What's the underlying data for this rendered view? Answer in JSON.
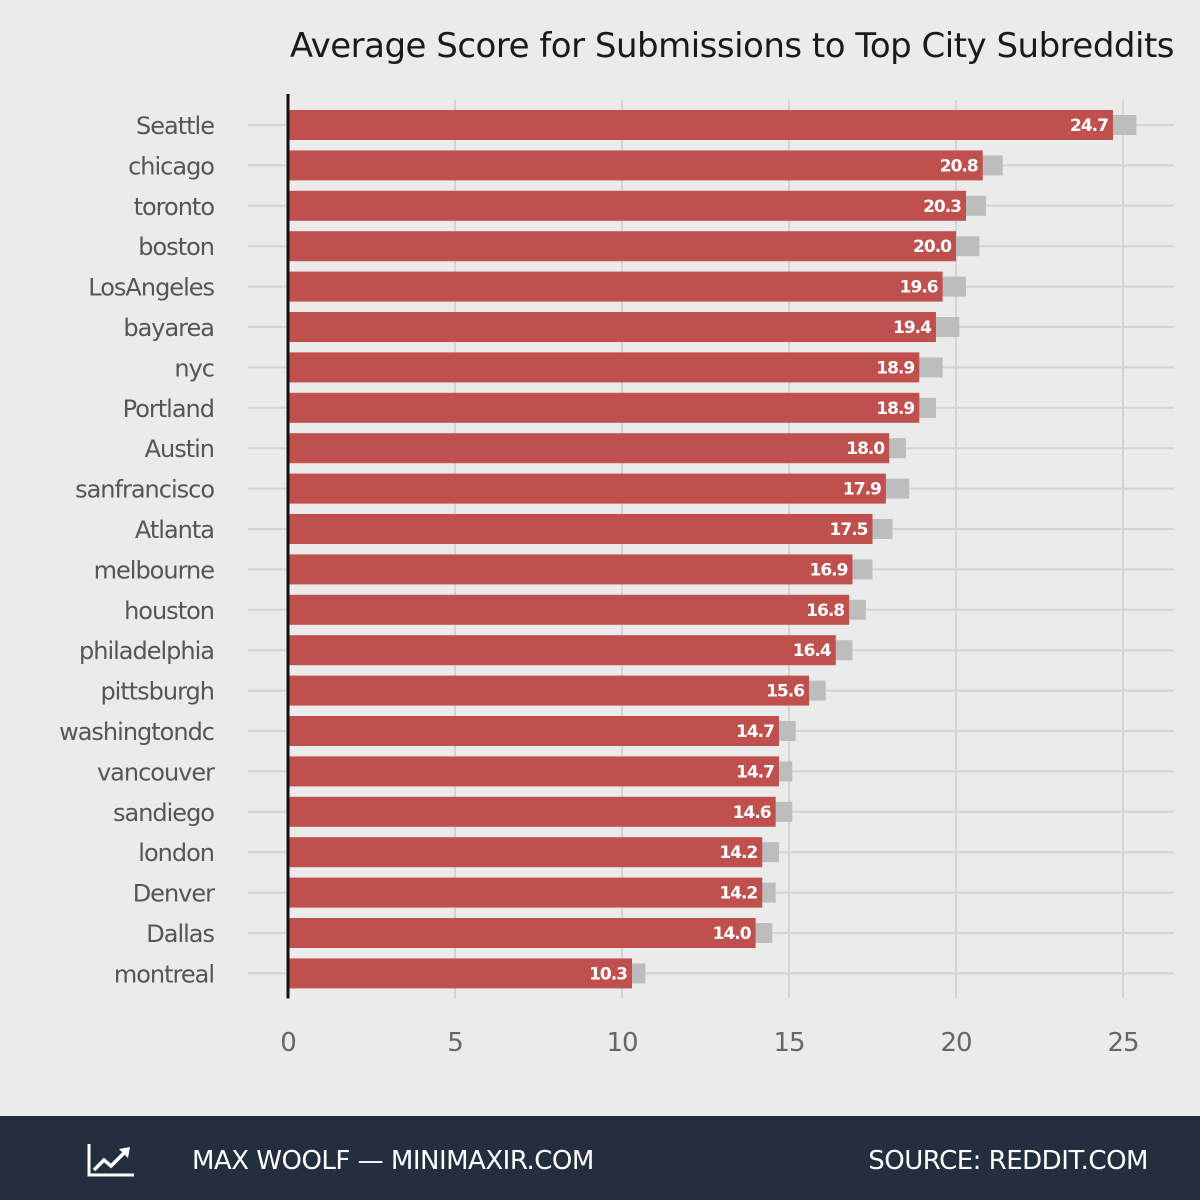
{
  "title": "Average Score for Submissions to Top City Subreddits",
  "footer": {
    "author": "MAX WOOLF — MINIMAXIR.COM",
    "source": "SOURCE: REDDIT.COM",
    "icon": "trend-chart-icon"
  },
  "colors": {
    "bar": "#c0504d",
    "error_bar": "#bdbdbd",
    "background": "#ebebeb",
    "footer_background": "#232f3e"
  },
  "chart_data": {
    "type": "bar",
    "orientation": "horizontal",
    "title": "Average Score for Submissions to Top City Subreddits",
    "xlabel": "",
    "ylabel": "",
    "xlim": [
      0,
      26.5
    ],
    "xticks": [
      0,
      5,
      10,
      15,
      20,
      25
    ],
    "grid": true,
    "categories": [
      "Seattle",
      "chicago",
      "toronto",
      "boston",
      "LosAngeles",
      "bayarea",
      "nyc",
      "Portland",
      "Austin",
      "sanfrancisco",
      "Atlanta",
      "melbourne",
      "houston",
      "philadelphia",
      "pittsburgh",
      "washingtondc",
      "vancouver",
      "sandiego",
      "london",
      "Denver",
      "Dallas",
      "montreal"
    ],
    "values": [
      24.7,
      20.8,
      20.3,
      20.0,
      19.6,
      19.4,
      18.9,
      18.9,
      18.0,
      17.9,
      17.5,
      16.9,
      16.8,
      16.4,
      15.6,
      14.7,
      14.7,
      14.6,
      14.2,
      14.2,
      14.0,
      10.3
    ],
    "value_labels": [
      "24.7",
      "20.8",
      "20.3",
      "20.0",
      "19.6",
      "19.4",
      "18.9",
      "18.9",
      "18.0",
      "17.9",
      "17.5",
      "16.9",
      "16.8",
      "16.4",
      "15.6",
      "14.7",
      "14.7",
      "14.6",
      "14.2",
      "14.2",
      "14.0",
      "10.3"
    ],
    "error_upper": [
      25.4,
      21.4,
      20.9,
      20.7,
      20.3,
      20.1,
      19.6,
      19.4,
      18.5,
      18.6,
      18.1,
      17.5,
      17.3,
      16.9,
      16.1,
      15.2,
      15.1,
      15.1,
      14.7,
      14.6,
      14.5,
      10.7
    ]
  }
}
